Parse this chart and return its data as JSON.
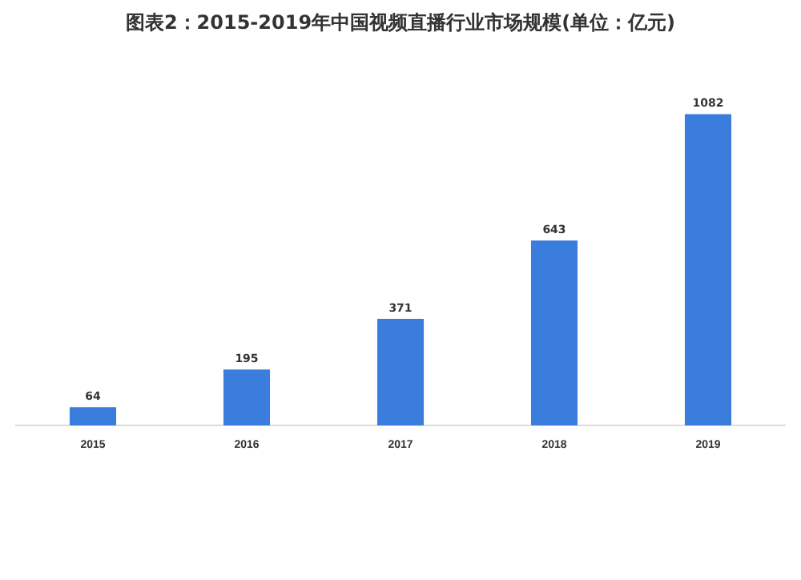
{
  "chart_data": {
    "type": "bar",
    "title": "图表2：2015-2019年中国视频直播行业市场规模(单位：亿元)",
    "categories": [
      "2015",
      "2016",
      "2017",
      "2018",
      "2019"
    ],
    "values": [
      64,
      195,
      371,
      643,
      1082
    ],
    "color": "#3b7ddd",
    "data_labels": true,
    "grid": false,
    "legend": false
  }
}
